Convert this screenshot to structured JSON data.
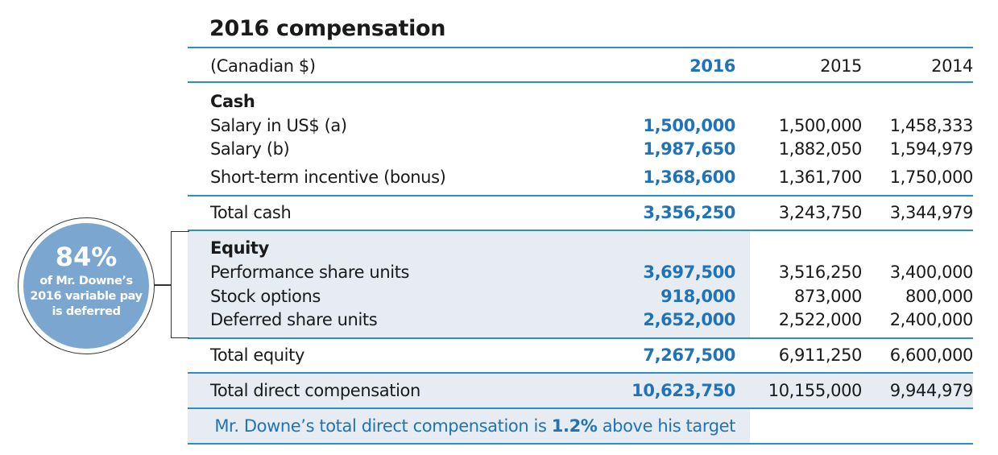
{
  "title": "2016 compensation",
  "header": {
    "label": "(Canadian $)",
    "y2016": "2016",
    "y2015": "2015",
    "y2014": "2014"
  },
  "cash": {
    "heading": "Cash",
    "rows": [
      {
        "label": "Salary in US$ (a)",
        "v2016": "1,500,000",
        "v2015": "1,500,000",
        "v2014": "1,458,333"
      },
      {
        "label": "Salary (b)",
        "v2016": "1,987,650",
        "v2015": "1,882,050",
        "v2014": "1,594,979"
      },
      {
        "label": "Short-term incentive (bonus)",
        "v2016": "1,368,600",
        "v2015": "1,361,700",
        "v2014": "1,750,000"
      }
    ],
    "total": {
      "label": "Total cash",
      "v2016": "3,356,250",
      "v2015": "3,243,750",
      "v2014": "3,344,979"
    }
  },
  "equity": {
    "heading": "Equity",
    "rows": [
      {
        "label": "Performance share units",
        "v2016": "3,697,500",
        "v2015": "3,516,250",
        "v2014": "3,400,000"
      },
      {
        "label": "Stock options",
        "v2016": "918,000",
        "v2015": "873,000",
        "v2014": "800,000"
      },
      {
        "label": "Deferred share units",
        "v2016": "2,652,000",
        "v2015": "2,522,000",
        "v2014": "2,400,000"
      }
    ],
    "total": {
      "label": "Total equity",
      "v2016": "7,267,500",
      "v2015": "6,911,250",
      "v2014": "6,600,000"
    }
  },
  "total_direct": {
    "label": "Total direct compensation",
    "v2016": "10,623,750",
    "v2015": "10,155,000",
    "v2014": "9,944,979"
  },
  "note": {
    "before": "Mr. Downe’s total direct compensation is ",
    "pct": "1.2%",
    "after": " above his target"
  },
  "callout": {
    "pct": "84%",
    "line1": "of Mr. Downe’s",
    "line2": "2016 variable pay",
    "line3": "is deferred"
  },
  "colors": {
    "accent": "#1f73b6",
    "rule": "#2a8fc4",
    "shade": "#e6ecf1",
    "bubble": "#7ba6d0"
  }
}
